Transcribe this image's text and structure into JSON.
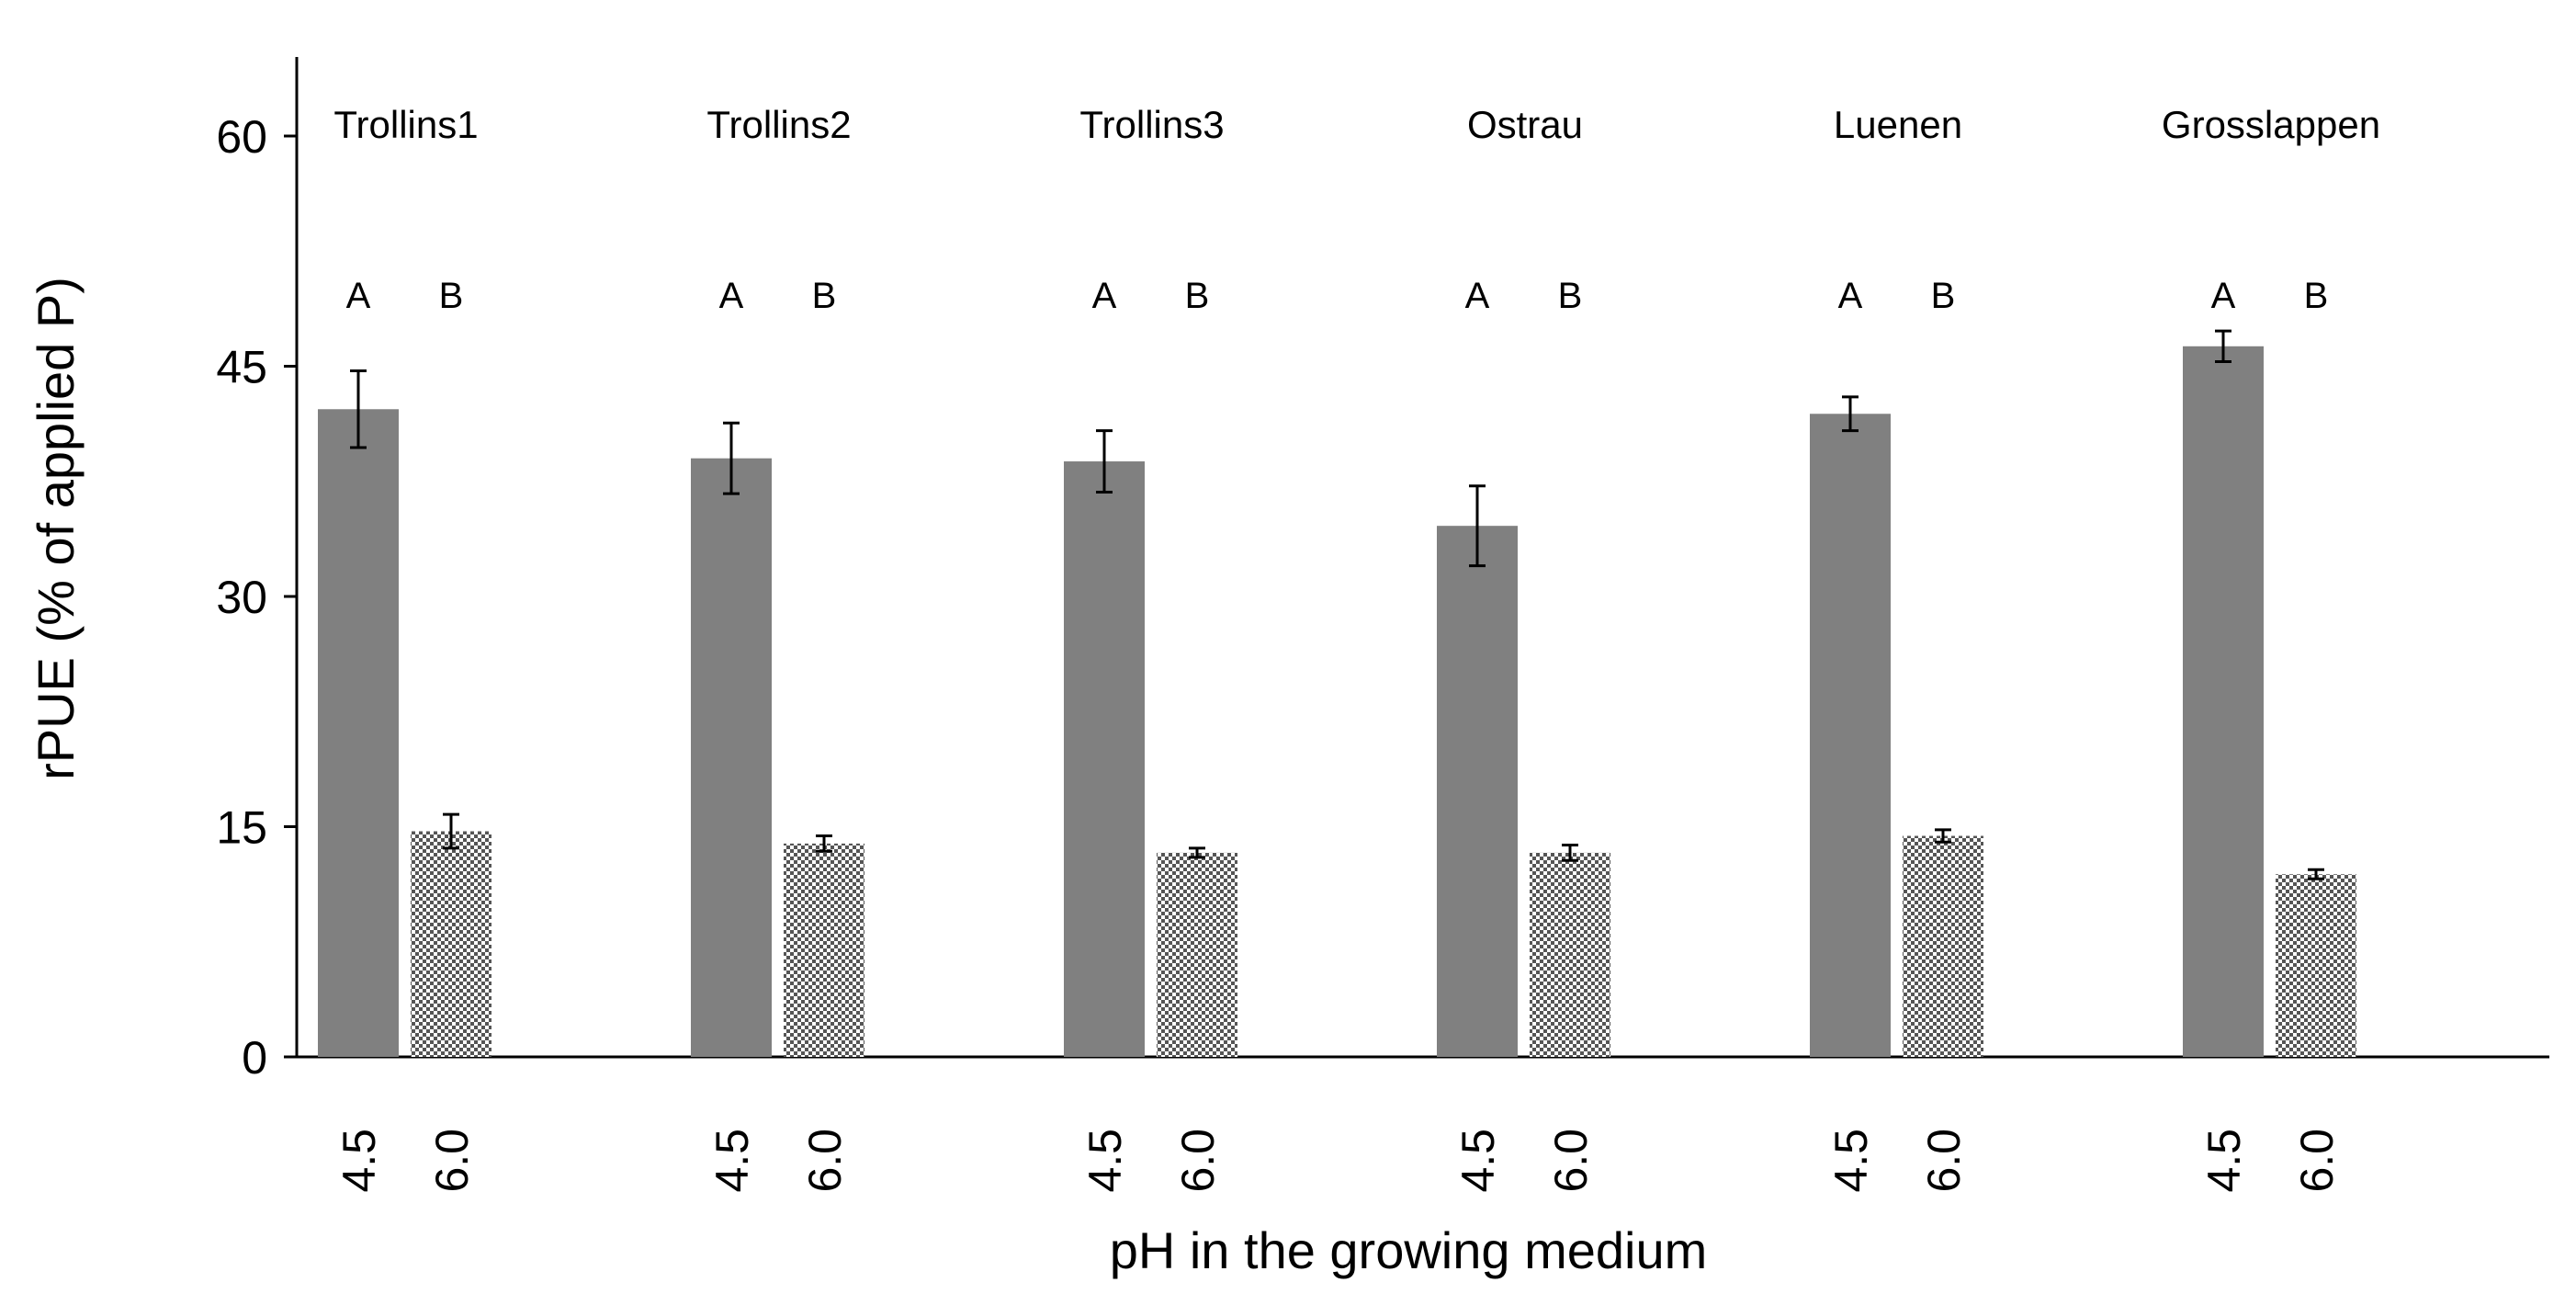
{
  "chart_data": {
    "type": "bar",
    "title": "",
    "xlabel": "pH in the growing medium",
    "ylabel": "rPUE (% of applied P)",
    "ylim": [
      0,
      65
    ],
    "yticks": [
      0,
      15,
      30,
      45,
      60
    ],
    "yticks_text": [
      "0",
      "15",
      "30",
      "45",
      "60"
    ],
    "grid": false,
    "legend": "none",
    "categories": [
      "Trollins1",
      "Trollins2",
      "Trollins3",
      "Ostrau",
      "Luenen",
      "Grosslappen"
    ],
    "series": [
      {
        "name": "pH 4.5",
        "x_label": "4.5",
        "fill": "solid",
        "color": "#808080",
        "values": [
          42.2,
          39.0,
          38.8,
          34.6,
          41.9,
          46.3
        ],
        "errors": [
          2.5,
          2.3,
          2.0,
          2.6,
          1.1,
          1.0
        ],
        "letters": [
          "A",
          "A",
          "A",
          "A",
          "A",
          "A"
        ]
      },
      {
        "name": "pH 6.0",
        "x_label": "6.0",
        "fill": "checkered",
        "color": "#6f6f6f",
        "values": [
          14.7,
          13.9,
          13.3,
          13.3,
          14.4,
          11.9
        ],
        "errors": [
          1.1,
          0.5,
          0.3,
          0.5,
          0.4,
          0.3
        ],
        "letters": [
          "B",
          "B",
          "B",
          "B",
          "B",
          "B"
        ]
      }
    ]
  }
}
